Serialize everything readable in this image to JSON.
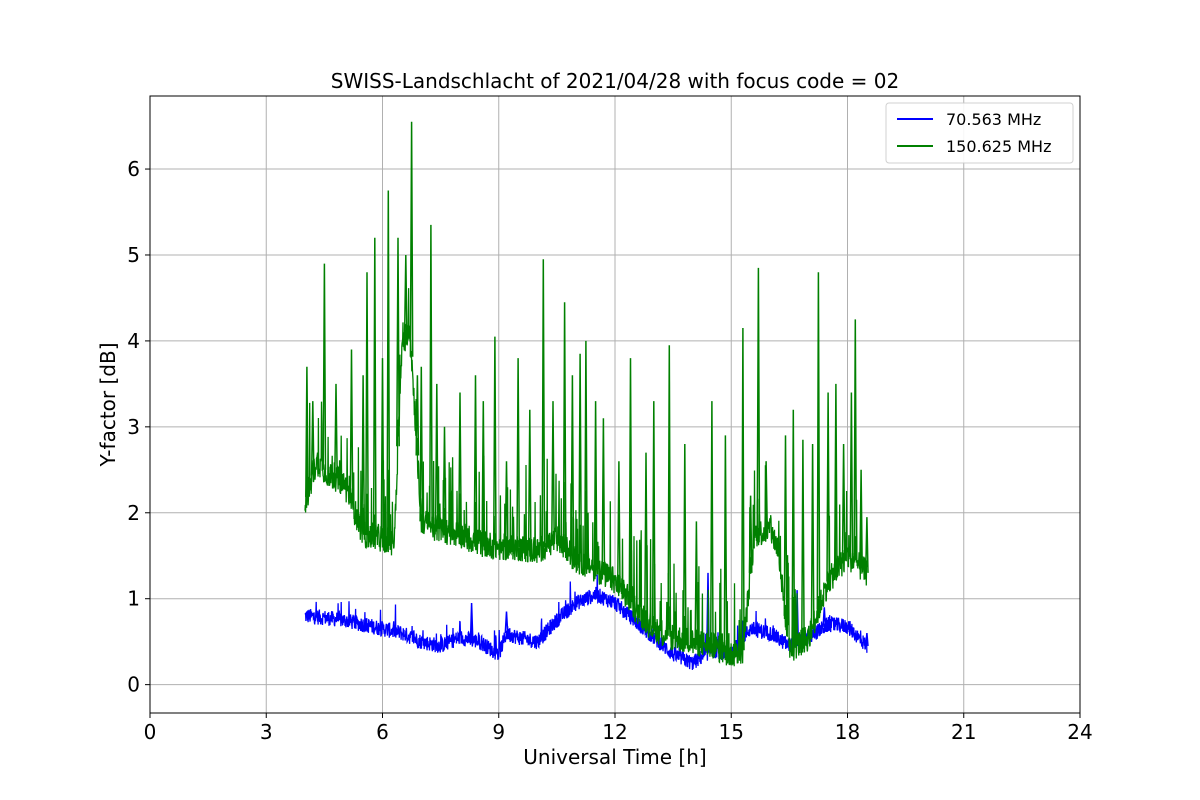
{
  "chart_data": {
    "type": "line",
    "title": "SWISS-Landschlacht of 2021/04/28 with focus code = 02",
    "xlabel": "Universal Time [h]",
    "ylabel": "Y-factor [dB]",
    "xlim": [
      0,
      24
    ],
    "ylim": [
      -0.33,
      6.85
    ],
    "xticks": [
      0,
      3,
      6,
      9,
      12,
      15,
      18,
      21,
      24
    ],
    "yticks": [
      0,
      1,
      2,
      3,
      4,
      5,
      6
    ],
    "grid": true,
    "legend_position": "top-right",
    "series": [
      {
        "name": "  70.563 MHz",
        "color": "#0000ff",
        "x": [
          4.0,
          4.5,
          5.0,
          5.5,
          6.0,
          6.5,
          7.0,
          7.5,
          8.0,
          8.5,
          9.0,
          9.2,
          9.5,
          10.0,
          10.5,
          11.0,
          11.5,
          12.0,
          12.5,
          13.0,
          13.5,
          14.0,
          14.5,
          15.0,
          15.3,
          15.5,
          16.0,
          16.5,
          17.0,
          17.5,
          18.0,
          18.5
        ],
        "values": [
          0.8,
          0.78,
          0.75,
          0.7,
          0.65,
          0.6,
          0.5,
          0.45,
          0.55,
          0.5,
          0.35,
          0.6,
          0.55,
          0.5,
          0.75,
          0.95,
          1.05,
          0.95,
          0.75,
          0.55,
          0.35,
          0.25,
          0.4,
          0.35,
          0.55,
          0.65,
          0.6,
          0.45,
          0.55,
          0.7,
          0.68,
          0.45
        ],
        "spikes": [
          [
            8.3,
            0.95
          ],
          [
            9.2,
            0.85
          ],
          [
            14.4,
            1.3
          ],
          [
            16.7,
            1.1
          ],
          [
            17.4,
            0.9
          ],
          [
            18.5,
            0.6
          ]
        ]
      },
      {
        "name": "150.625 MHz",
        "color": "#008000",
        "x": [
          4.0,
          4.3,
          4.6,
          5.0,
          5.5,
          6.0,
          6.3,
          6.5,
          6.7,
          7.0,
          7.5,
          8.0,
          8.5,
          9.0,
          9.5,
          10.0,
          10.5,
          11.0,
          11.5,
          12.0,
          12.5,
          13.0,
          13.5,
          14.0,
          14.5,
          15.0,
          15.3,
          15.6,
          16.0,
          16.2,
          16.5,
          17.0,
          17.5,
          18.0,
          18.5
        ],
        "values": [
          2.1,
          2.6,
          2.45,
          2.35,
          1.75,
          1.7,
          1.65,
          3.9,
          4.2,
          1.9,
          1.8,
          1.75,
          1.65,
          1.6,
          1.6,
          1.55,
          1.7,
          1.45,
          1.35,
          1.2,
          0.9,
          0.65,
          0.55,
          0.5,
          0.45,
          0.35,
          0.4,
          1.75,
          1.8,
          1.6,
          0.4,
          0.55,
          1.2,
          1.5,
          1.3
        ],
        "spikes": [
          [
            4.05,
            3.7
          ],
          [
            4.2,
            3.3
          ],
          [
            4.5,
            4.9
          ],
          [
            4.8,
            3.5
          ],
          [
            5.2,
            3.9
          ],
          [
            5.5,
            3.6
          ],
          [
            5.6,
            4.8
          ],
          [
            5.8,
            5.2
          ],
          [
            6.0,
            3.8
          ],
          [
            6.15,
            5.75
          ],
          [
            6.4,
            5.2
          ],
          [
            6.6,
            5.0
          ],
          [
            6.75,
            6.55
          ],
          [
            6.9,
            3.6
          ],
          [
            7.0,
            3.7
          ],
          [
            7.25,
            5.35
          ],
          [
            7.4,
            3.5
          ],
          [
            7.6,
            3.0
          ],
          [
            8.0,
            3.4
          ],
          [
            8.4,
            3.6
          ],
          [
            8.6,
            3.3
          ],
          [
            8.9,
            4.05
          ],
          [
            9.2,
            2.6
          ],
          [
            9.5,
            3.8
          ],
          [
            9.8,
            3.2
          ],
          [
            10.15,
            4.95
          ],
          [
            10.4,
            3.3
          ],
          [
            10.7,
            4.45
          ],
          [
            10.9,
            3.6
          ],
          [
            11.1,
            3.85
          ],
          [
            11.25,
            4.0
          ],
          [
            11.5,
            3.3
          ],
          [
            11.7,
            3.1
          ],
          [
            12.1,
            2.6
          ],
          [
            12.4,
            3.8
          ],
          [
            12.8,
            2.7
          ],
          [
            13.0,
            3.3
          ],
          [
            13.4,
            3.95
          ],
          [
            13.8,
            2.8
          ],
          [
            14.1,
            1.9
          ],
          [
            14.5,
            3.3
          ],
          [
            14.85,
            2.9
          ],
          [
            15.3,
            4.15
          ],
          [
            15.5,
            2.2
          ],
          [
            15.7,
            4.85
          ],
          [
            15.9,
            2.6
          ],
          [
            16.4,
            2.9
          ],
          [
            16.6,
            3.2
          ],
          [
            16.85,
            2.85
          ],
          [
            17.1,
            2.8
          ],
          [
            17.25,
            4.8
          ],
          [
            17.5,
            3.4
          ],
          [
            17.7,
            3.5
          ],
          [
            17.9,
            2.8
          ],
          [
            18.1,
            3.4
          ],
          [
            18.2,
            4.25
          ],
          [
            18.35,
            2.5
          ],
          [
            18.5,
            1.95
          ]
        ]
      }
    ]
  }
}
